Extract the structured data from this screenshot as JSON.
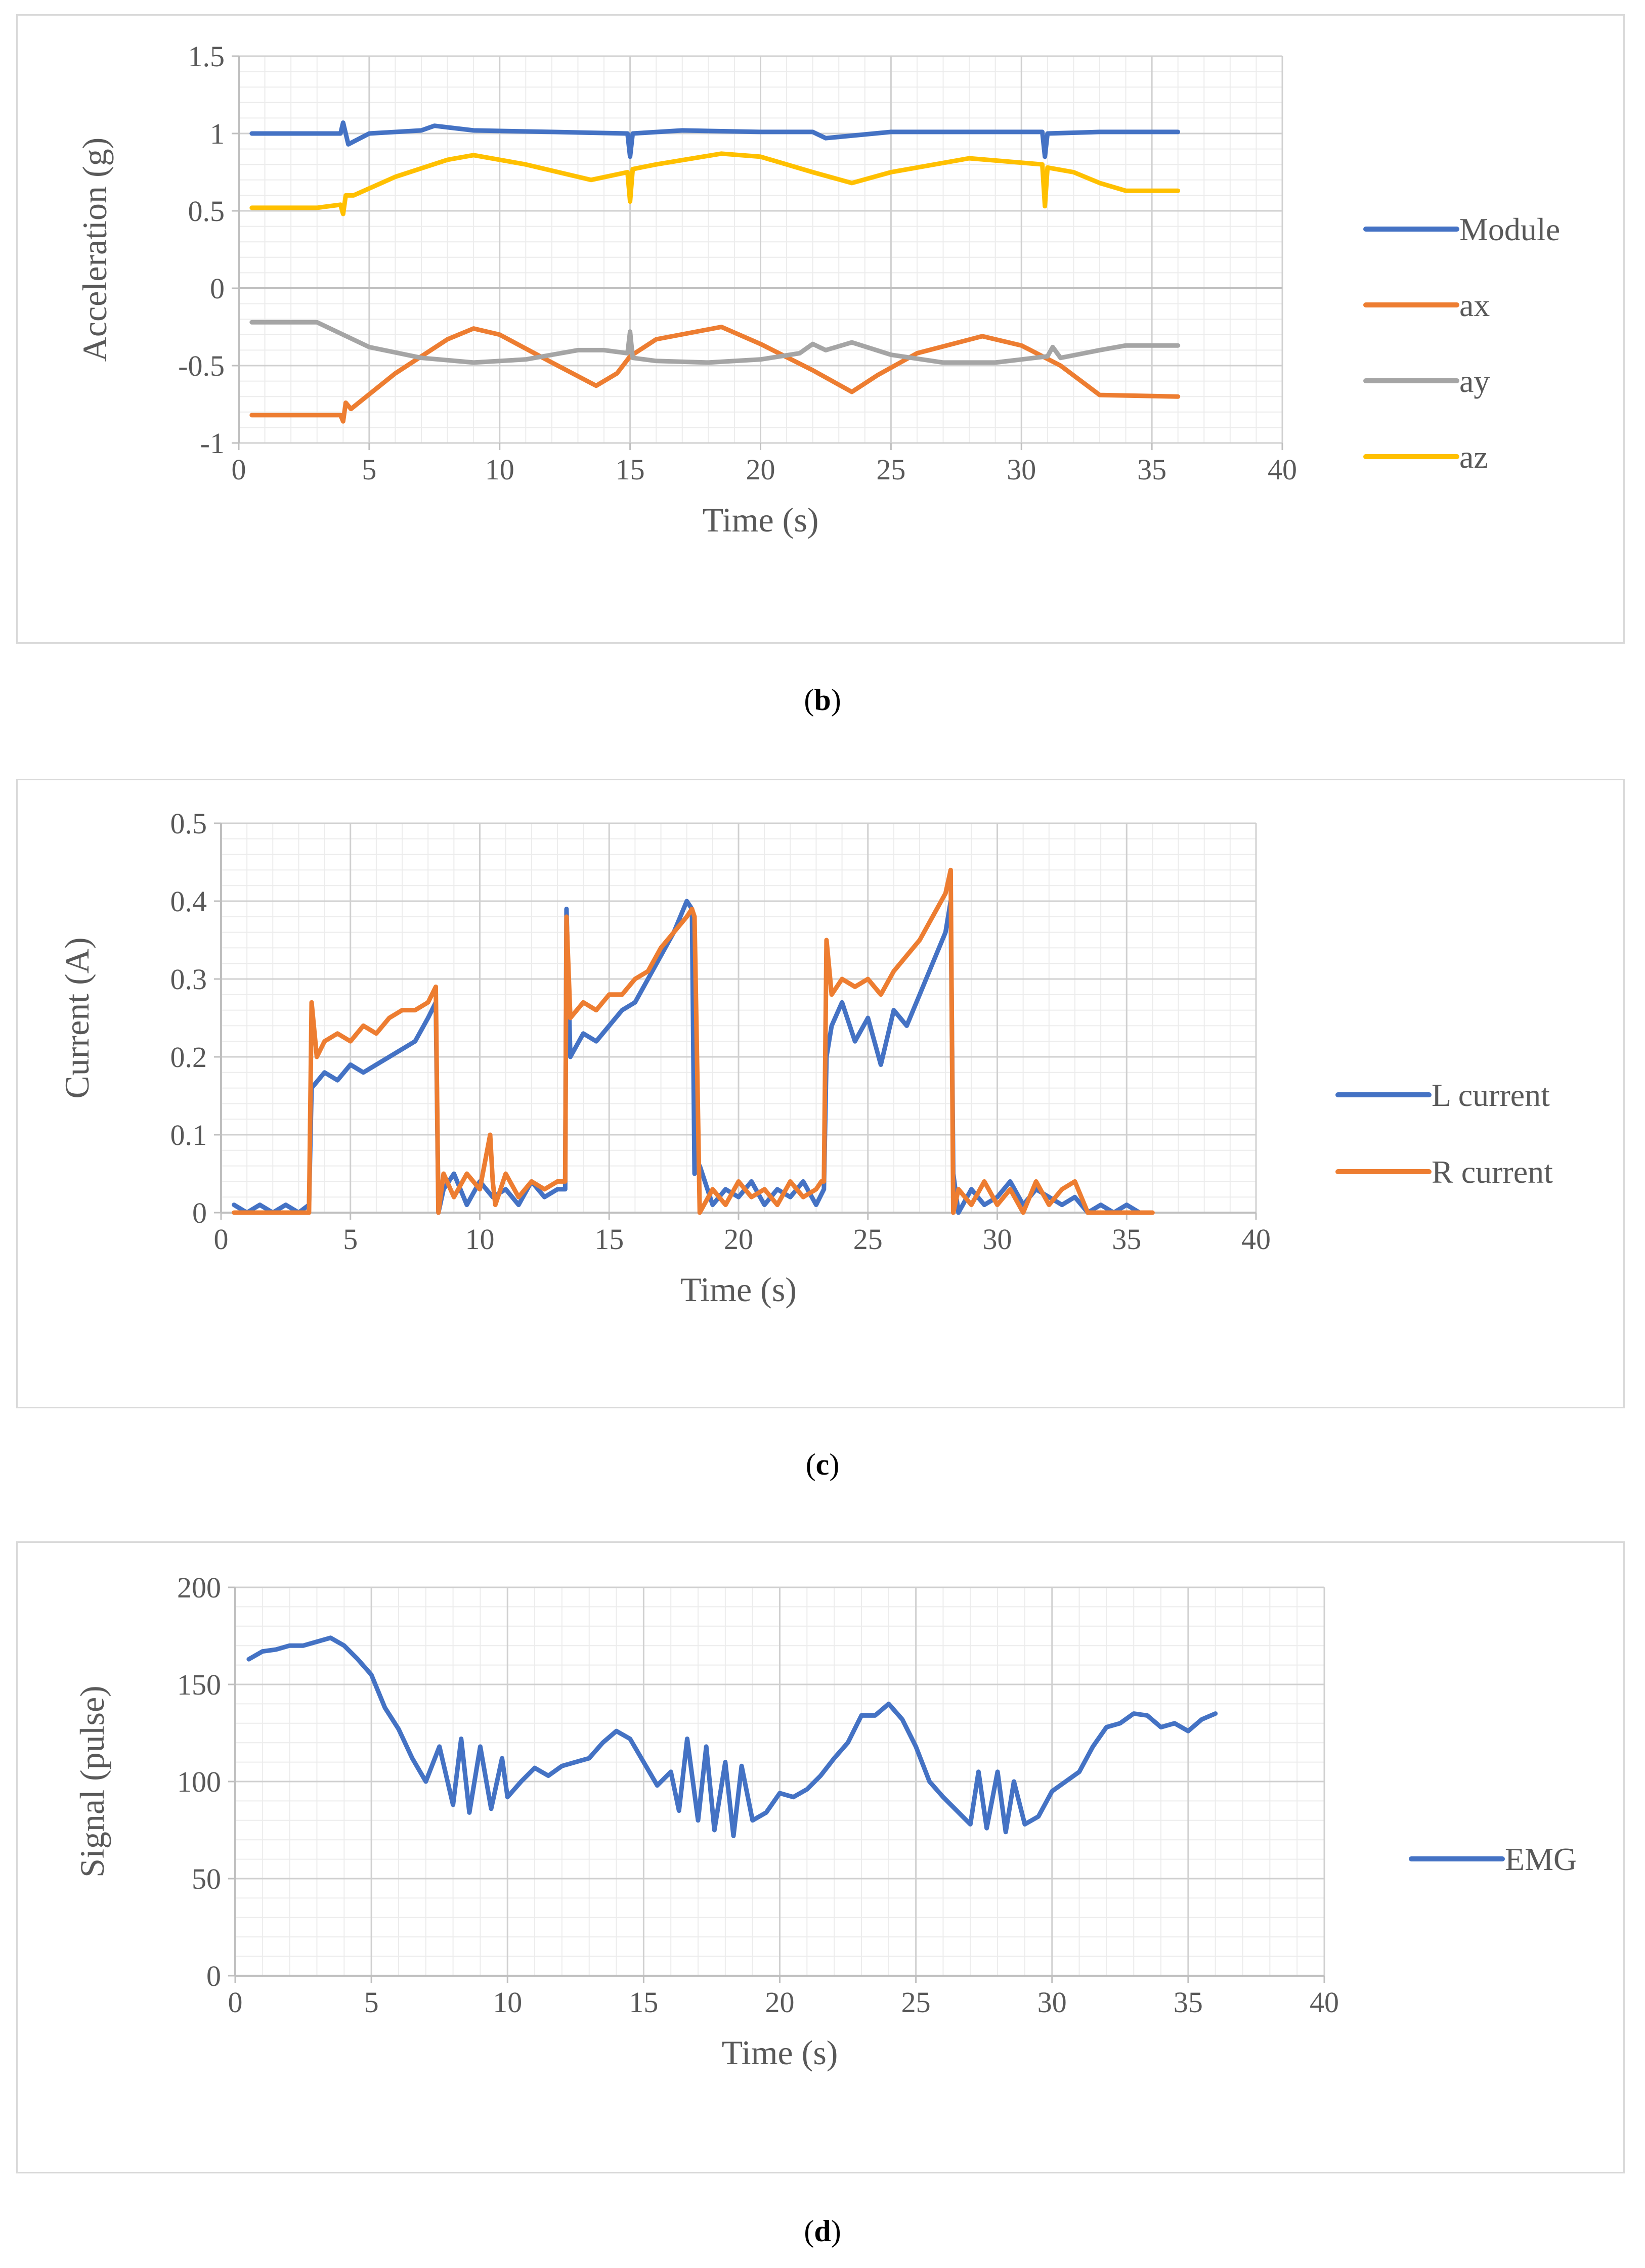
{
  "figure": {
    "captions": [
      {
        "pre": "(",
        "letter": "b",
        "post": ")"
      },
      {
        "pre": "(",
        "letter": "c",
        "post": ")"
      },
      {
        "pre": "(",
        "letter": "d",
        "post": ")"
      }
    ]
  },
  "chart_data": [
    {
      "type": "line",
      "title": "",
      "xlabel": "Time (s)",
      "ylabel": "Acceleration (g)",
      "xlim": [
        0,
        40
      ],
      "ylim": [
        -1,
        1.5
      ],
      "xticks": [
        0,
        5,
        10,
        15,
        20,
        25,
        30,
        35,
        40
      ],
      "yticks": [
        -1,
        -0.5,
        0,
        0.5,
        1,
        1.5
      ],
      "ytick_labels": [
        "-1",
        "-0.5",
        "0",
        "0.5",
        "1",
        "1.5"
      ],
      "grid": true,
      "legend_position": "right",
      "series": [
        {
          "name": "Module",
          "color": "#4472c4",
          "x": [
            0.5,
            2,
            3.9,
            4,
            4.2,
            5,
            7,
            7.5,
            9,
            12,
            14.9,
            15,
            15.1,
            17,
            20,
            22,
            22.5,
            25,
            28,
            30.8,
            30.9,
            31,
            33,
            36
          ],
          "y": [
            1.0,
            1.0,
            1.0,
            1.07,
            0.93,
            1.0,
            1.02,
            1.05,
            1.02,
            1.01,
            1.0,
            0.85,
            1.0,
            1.02,
            1.01,
            1.01,
            0.97,
            1.01,
            1.01,
            1.01,
            0.85,
            1.0,
            1.01,
            1.01
          ]
        },
        {
          "name": "ax",
          "color": "#ed7d31",
          "x": [
            0.5,
            2,
            3.9,
            4,
            4.1,
            4.3,
            6,
            8,
            9,
            10,
            12,
            13.7,
            14.5,
            15,
            16,
            18.5,
            20,
            22,
            23.5,
            24.5,
            26,
            28.5,
            30,
            31.5,
            33,
            36
          ],
          "y": [
            -0.82,
            -0.82,
            -0.82,
            -0.86,
            -0.74,
            -0.78,
            -0.55,
            -0.33,
            -0.26,
            -0.3,
            -0.48,
            -0.63,
            -0.55,
            -0.44,
            -0.33,
            -0.25,
            -0.36,
            -0.53,
            -0.67,
            -0.56,
            -0.42,
            -0.31,
            -0.37,
            -0.5,
            -0.69,
            -0.7
          ]
        },
        {
          "name": "ay",
          "color": "#a5a5a5",
          "x": [
            0.5,
            3,
            4,
            5,
            7,
            9,
            11,
            13,
            14,
            14.9,
            15,
            15.1,
            16,
            18,
            20,
            21.5,
            22,
            22.5,
            23.5,
            25,
            27,
            29,
            30,
            31,
            31.2,
            31.5,
            33,
            34,
            36
          ],
          "y": [
            -0.22,
            -0.22,
            -0.3,
            -0.38,
            -0.45,
            -0.48,
            -0.46,
            -0.4,
            -0.4,
            -0.42,
            -0.28,
            -0.45,
            -0.47,
            -0.48,
            -0.46,
            -0.42,
            -0.36,
            -0.4,
            -0.35,
            -0.43,
            -0.48,
            -0.48,
            -0.46,
            -0.44,
            -0.38,
            -0.45,
            -0.4,
            -0.37,
            -0.37
          ]
        },
        {
          "name": "az",
          "color": "#ffc000",
          "x": [
            0.5,
            3,
            3.9,
            4,
            4.1,
            4.4,
            6,
            8,
            9,
            11,
            13.5,
            14.9,
            15,
            15.1,
            16,
            18.5,
            20,
            22,
            23.5,
            25,
            28,
            30.8,
            30.9,
            31,
            32,
            33,
            34,
            36
          ],
          "y": [
            0.52,
            0.52,
            0.54,
            0.48,
            0.6,
            0.6,
            0.72,
            0.83,
            0.86,
            0.8,
            0.7,
            0.75,
            0.56,
            0.77,
            0.8,
            0.87,
            0.85,
            0.75,
            0.68,
            0.75,
            0.84,
            0.8,
            0.53,
            0.78,
            0.75,
            0.68,
            0.63,
            0.63
          ]
        }
      ]
    },
    {
      "type": "line",
      "title": "",
      "xlabel": "Time (s)",
      "ylabel": "Current (A)",
      "xlim": [
        0,
        40
      ],
      "ylim": [
        0,
        0.5
      ],
      "xticks": [
        0,
        5,
        10,
        15,
        20,
        25,
        30,
        35,
        40
      ],
      "yticks": [
        0,
        0.1,
        0.2,
        0.3,
        0.4,
        0.5
      ],
      "ytick_labels": [
        "0",
        "0.1",
        "0.2",
        "0.3",
        "0.4",
        "0.5"
      ],
      "grid": true,
      "legend_position": "right",
      "series": [
        {
          "name": "L current",
          "color": "#4472c4",
          "x": [
            0.5,
            1,
            1.5,
            2,
            2.5,
            3,
            3.4,
            3.5,
            4,
            4.5,
            5,
            5.5,
            6,
            6.5,
            7,
            7.5,
            8,
            8.3,
            8.4,
            8.6,
            9,
            9.5,
            10,
            10.5,
            11,
            11.5,
            12,
            12.5,
            13,
            13.3,
            13.35,
            13.5,
            14,
            14.5,
            15,
            15.5,
            16,
            16.5,
            17,
            17.5,
            18,
            18.2,
            18.3,
            18.5,
            19,
            19.5,
            20,
            20.5,
            21,
            21.5,
            22,
            22.5,
            23,
            23.3,
            23.4,
            23.6,
            24,
            24.5,
            25,
            25.5,
            26,
            26.5,
            27,
            27.5,
            28,
            28.2,
            28.3,
            28.5,
            29,
            29.5,
            30,
            30.5,
            31,
            31.5,
            32,
            32.5,
            33,
            33.5,
            34,
            34.5,
            35,
            35.5
          ],
          "y": [
            0.01,
            0,
            0.01,
            0,
            0.01,
            0,
            0.01,
            0.16,
            0.18,
            0.17,
            0.19,
            0.18,
            0.19,
            0.2,
            0.21,
            0.22,
            0.25,
            0.27,
            0,
            0.03,
            0.05,
            0.01,
            0.04,
            0.02,
            0.03,
            0.01,
            0.04,
            0.02,
            0.03,
            0.03,
            0.39,
            0.2,
            0.23,
            0.22,
            0.24,
            0.26,
            0.27,
            0.3,
            0.33,
            0.36,
            0.4,
            0.39,
            0.05,
            0.06,
            0.01,
            0.03,
            0.02,
            0.04,
            0.01,
            0.03,
            0.02,
            0.04,
            0.01,
            0.03,
            0.2,
            0.24,
            0.27,
            0.22,
            0.25,
            0.19,
            0.26,
            0.24,
            0.28,
            0.32,
            0.36,
            0.4,
            0.05,
            0,
            0.03,
            0.01,
            0.02,
            0.04,
            0.01,
            0.03,
            0.02,
            0.01,
            0.02,
            0,
            0.01,
            0,
            0.01,
            0
          ]
        },
        {
          "name": "R current",
          "color": "#ed7d31",
          "x": [
            0.5,
            1,
            2,
            3,
            3.4,
            3.5,
            3.7,
            4,
            4.5,
            5,
            5.5,
            6,
            6.5,
            7,
            7.5,
            8,
            8.3,
            8.4,
            8.6,
            9,
            9.5,
            10,
            10.4,
            10.5,
            10.6,
            11,
            11.5,
            12,
            12.5,
            13,
            13.3,
            13.35,
            13.5,
            14,
            14.5,
            15,
            15.5,
            16,
            16.5,
            17,
            17.5,
            18,
            18.2,
            18.3,
            18.5,
            19,
            19.5,
            20,
            20.5,
            21,
            21.5,
            22,
            22.5,
            23,
            23.2,
            23.3,
            23.4,
            23.6,
            24,
            24.5,
            25,
            25.5,
            26,
            26.5,
            27,
            27.5,
            28,
            28.2,
            28.3,
            28.5,
            29,
            29.5,
            30,
            30.5,
            31,
            31.5,
            32,
            32.5,
            33,
            33.5,
            34,
            36
          ],
          "y": [
            0,
            0,
            0,
            0,
            0,
            0.27,
            0.2,
            0.22,
            0.23,
            0.22,
            0.24,
            0.23,
            0.25,
            0.26,
            0.26,
            0.27,
            0.29,
            0,
            0.05,
            0.02,
            0.05,
            0.03,
            0.1,
            0.04,
            0.01,
            0.05,
            0.02,
            0.04,
            0.03,
            0.04,
            0.04,
            0.38,
            0.25,
            0.27,
            0.26,
            0.28,
            0.28,
            0.3,
            0.31,
            0.34,
            0.36,
            0.38,
            0.39,
            0.38,
            0,
            0.03,
            0.01,
            0.04,
            0.02,
            0.03,
            0.01,
            0.04,
            0.02,
            0.03,
            0.04,
            0.04,
            0.35,
            0.28,
            0.3,
            0.29,
            0.3,
            0.28,
            0.31,
            0.33,
            0.35,
            0.38,
            0.41,
            0.44,
            0,
            0.03,
            0.01,
            0.04,
            0.01,
            0.03,
            0,
            0.04,
            0.01,
            0.03,
            0.04,
            0,
            0,
            0
          ]
        }
      ]
    },
    {
      "type": "line",
      "title": "",
      "xlabel": "Time (s)",
      "ylabel": "Signal (pulse)",
      "xlim": [
        0,
        40
      ],
      "ylim": [
        0,
        200
      ],
      "xticks": [
        0,
        5,
        10,
        15,
        20,
        25,
        30,
        35,
        40
      ],
      "yticks": [
        0,
        50,
        100,
        150,
        200
      ],
      "ytick_labels": [
        "0",
        "50",
        "100",
        "150",
        "200"
      ],
      "grid": true,
      "legend_position": "right",
      "series": [
        {
          "name": "EMG",
          "color": "#4472c4",
          "x": [
            0.5,
            1,
            1.5,
            2,
            2.5,
            3,
            3.5,
            4,
            4.5,
            5,
            5.5,
            6,
            6.5,
            7,
            7.5,
            8,
            8.3,
            8.6,
            9,
            9.4,
            9.8,
            10,
            10.5,
            11,
            11.5,
            12,
            12.5,
            13,
            13.5,
            14,
            14.5,
            15,
            15.5,
            16,
            16.3,
            16.6,
            17,
            17.3,
            17.6,
            18,
            18.3,
            18.6,
            19,
            19.5,
            20,
            20.5,
            21,
            21.5,
            22,
            22.5,
            23,
            23.5,
            24,
            24.5,
            25,
            25.5,
            26,
            26.5,
            27,
            27.3,
            27.6,
            28,
            28.3,
            28.6,
            29,
            29.5,
            30,
            30.5,
            31,
            31.5,
            32,
            32.5,
            33,
            33.5,
            34,
            34.5,
            35,
            35.5,
            36
          ],
          "y": [
            163,
            167,
            168,
            170,
            170,
            172,
            174,
            170,
            163,
            155,
            138,
            127,
            112,
            100,
            118,
            88,
            122,
            84,
            118,
            86,
            112,
            92,
            100,
            107,
            103,
            108,
            110,
            112,
            120,
            126,
            122,
            110,
            98,
            105,
            85,
            122,
            80,
            118,
            75,
            110,
            72,
            108,
            80,
            84,
            94,
            92,
            96,
            103,
            112,
            120,
            134,
            134,
            140,
            132,
            118,
            100,
            92,
            85,
            78,
            105,
            76,
            105,
            74,
            100,
            78,
            82,
            95,
            100,
            105,
            118,
            128,
            130,
            135,
            134,
            128,
            130,
            126,
            132,
            135
          ]
        }
      ]
    }
  ]
}
